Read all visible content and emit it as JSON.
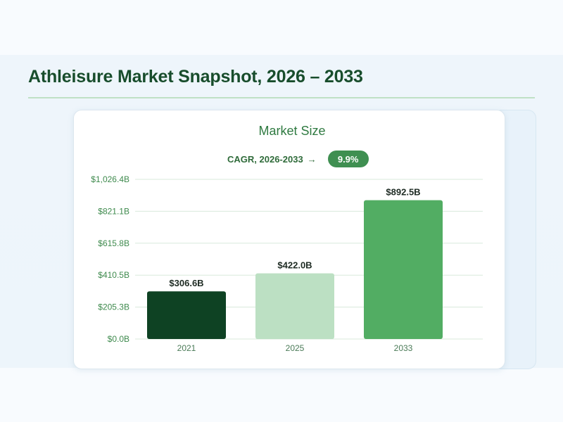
{
  "page": {
    "title": "Athleisure Market Snapshot, 2026 – 2033"
  },
  "chart": {
    "title": "Market Size",
    "cagr_label": "CAGR, 2026-2033",
    "cagr_arrow": "→",
    "cagr_value": "9.9%"
  },
  "chart_data": {
    "type": "bar",
    "title": "Market Size",
    "xlabel": "",
    "ylabel": "",
    "categories": [
      "2021",
      "2025",
      "2033"
    ],
    "values": [
      306.6,
      422.0,
      892.5
    ],
    "value_labels": [
      "$306.6B",
      "$422.0B",
      "$892.5B"
    ],
    "bar_colors": [
      "#0e4223",
      "#bce0c3",
      "#52ad63"
    ],
    "y_ticks": [
      0,
      205.3,
      410.5,
      615.8,
      821.1,
      1026.4
    ],
    "y_tick_labels": [
      "$0.0B",
      "$205.3B",
      "$410.5B",
      "$615.8B",
      "$821.1B",
      "$1,026.4B"
    ],
    "ylim": [
      0,
      1026.4
    ],
    "grid": true,
    "legend": "none"
  },
  "colors": {
    "title": "#184d2c",
    "accent": "#3f8f51",
    "grid": "#d8eadb"
  }
}
